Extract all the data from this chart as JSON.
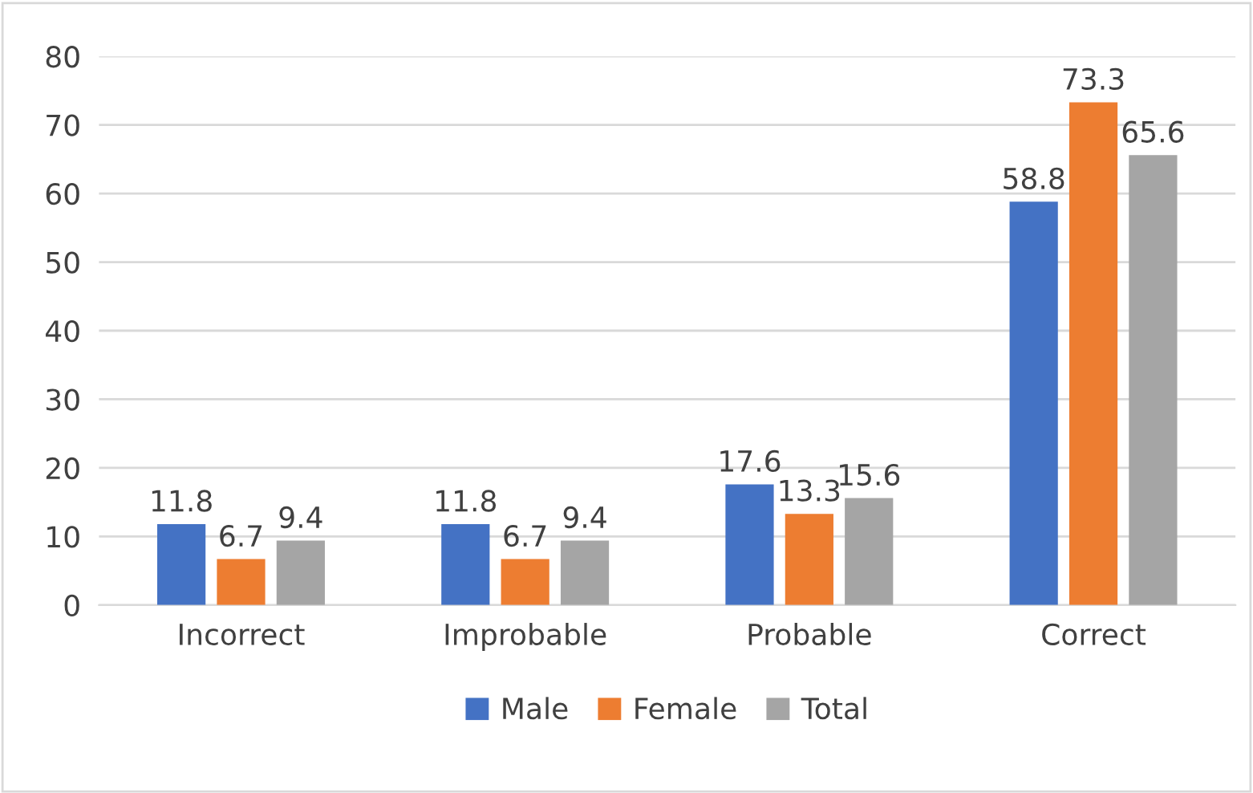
{
  "chart_data": {
    "type": "bar",
    "categories": [
      "Incorrect",
      "Improbable",
      "Probable",
      "Correct"
    ],
    "series": [
      {
        "name": "Male",
        "color": "#4472c4",
        "values": [
          11.8,
          11.8,
          17.6,
          58.8
        ]
      },
      {
        "name": "Female",
        "color": "#ed7d31",
        "values": [
          6.7,
          6.7,
          13.3,
          73.3
        ]
      },
      {
        "name": "Total",
        "color": "#a5a5a5",
        "values": [
          9.4,
          9.4,
          15.6,
          65.6
        ]
      }
    ],
    "ylim": [
      0,
      80
    ],
    "yticks": [
      0,
      10,
      20,
      30,
      40,
      50,
      60,
      70,
      80
    ],
    "grid": "y",
    "legend": "bottom",
    "data_labels": true
  }
}
